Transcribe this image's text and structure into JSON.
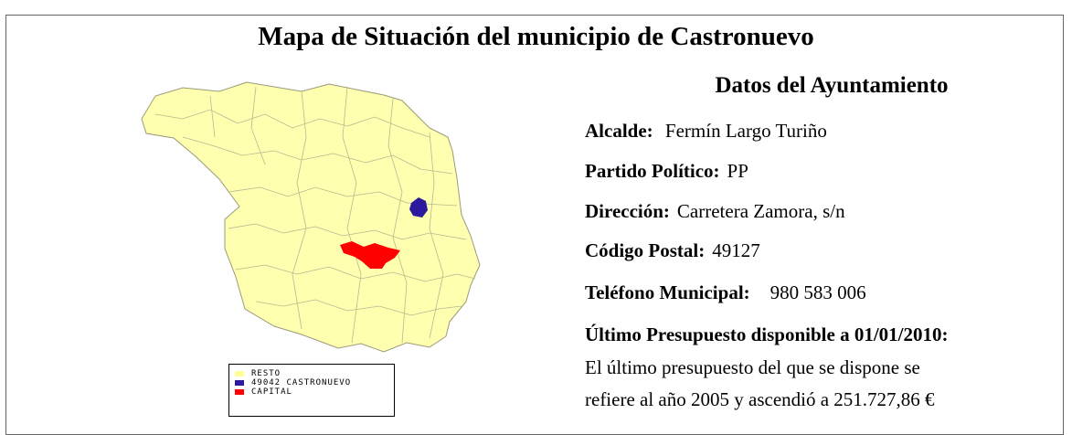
{
  "title": "Mapa de Situación del municipio de Castronuevo",
  "legend": [
    {
      "label": "RESTO",
      "color": "#ffff99"
    },
    {
      "label": "49042 CASTRONUEVO",
      "color": "#2b1a9e"
    },
    {
      "label": "CAPITAL",
      "color": "#ff0000"
    }
  ],
  "subtitle": "Datos del Ayuntamiento",
  "fields": [
    {
      "label": "Alcalde:",
      "value": "Fermín Largo Turiño"
    },
    {
      "label": "Partido Político:",
      "value": "PP"
    },
    {
      "label": "Dirección:",
      "value": "Carretera Zamora, s/n"
    },
    {
      "label": "Código Postal:",
      "value": "49127"
    },
    {
      "label": "Teléfono Municipal:",
      "value": "980 583 006"
    }
  ],
  "budget": {
    "heading": "Último Presupuesto disponible a 01/01/2010:",
    "lines": [
      "El último presupuesto del que se dispone se",
      "refiere al año 2005 y ascendió a 251.727,86 €"
    ]
  }
}
